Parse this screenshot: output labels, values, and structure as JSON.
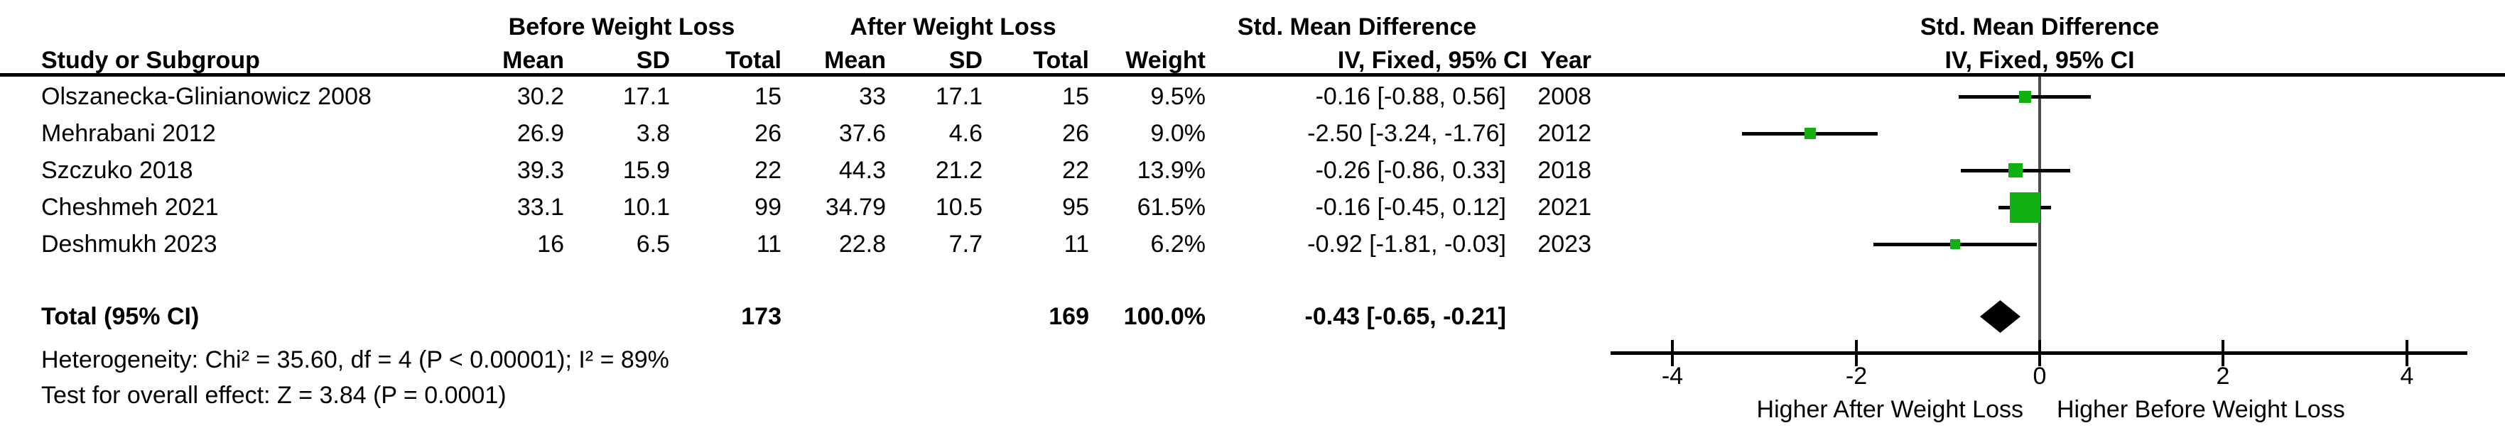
{
  "table": {
    "group_headers": {
      "before": "Before Weight Loss",
      "after": "After Weight Loss",
      "smd": "Std. Mean Difference"
    },
    "header": {
      "study": "Study or Subgroup",
      "mean_before": "Mean",
      "sd_before": "SD",
      "total_before": "Total",
      "mean_after": "Mean",
      "sd_after": "SD",
      "total_after": "Total",
      "weight": "Weight",
      "ci": "IV, Fixed, 95% CI",
      "year": "Year"
    },
    "rows": [
      {
        "name": "Olszanecka-Glinianowicz 2008",
        "mean_before": "30.2",
        "sd_before": "17.1",
        "total_before": "15",
        "mean_after": "33",
        "sd_after": "17.1",
        "total_after": "15",
        "weight": "9.5%",
        "ci_text": "-0.16 [-0.88, 0.56]",
        "year": "2008"
      },
      {
        "name": "Mehrabani 2012",
        "mean_before": "26.9",
        "sd_before": "3.8",
        "total_before": "26",
        "mean_after": "37.6",
        "sd_after": "4.6",
        "total_after": "26",
        "weight": "9.0%",
        "ci_text": "-2.50 [-3.24, -1.76]",
        "year": "2012"
      },
      {
        "name": "Szczuko 2018",
        "mean_before": "39.3",
        "sd_before": "15.9",
        "total_before": "22",
        "mean_after": "44.3",
        "sd_after": "21.2",
        "total_after": "22",
        "weight": "13.9%",
        "ci_text": "-0.26 [-0.86, 0.33]",
        "year": "2018"
      },
      {
        "name": "Cheshmeh 2021",
        "mean_before": "33.1",
        "sd_before": "10.1",
        "total_before": "99",
        "mean_after": "34.79",
        "sd_after": "10.5",
        "total_after": "95",
        "weight": "61.5%",
        "ci_text": "-0.16 [-0.45, 0.12]",
        "year": "2021"
      },
      {
        "name": "Deshmukh 2023",
        "mean_before": "16",
        "sd_before": "6.5",
        "total_before": "11",
        "mean_after": "22.8",
        "sd_after": "7.7",
        "total_after": "11",
        "weight": "6.2%",
        "ci_text": "-0.92 [-1.81, -0.03]",
        "year": "2023"
      }
    ],
    "total_row": {
      "label": "Total (95% CI)",
      "total_before": "173",
      "total_after": "169",
      "weight": "100.0%",
      "ci_text": "-0.43 [-0.65, -0.21]"
    }
  },
  "plot_header": {
    "line1": "Std. Mean Difference",
    "line2": "IV, Fixed, 95% CI"
  },
  "footer": {
    "heterogeneity": "Heterogeneity: Chi² = 35.60, df = 4 (P < 0.00001); I² = 89%",
    "overall_effect": "Test for overall effect: Z = 3.84 (P = 0.0001)"
  },
  "axis": {
    "tick_labels": [
      "-4",
      "-2",
      "0",
      "2",
      "4"
    ],
    "tick_values": [
      -4,
      -2,
      0,
      2,
      4
    ],
    "label_left": "Higher After Weight Loss",
    "label_right": "Higher Before Weight Loss"
  },
  "colors": {
    "marker_green": "#10b010",
    "diamond_black": "#000000",
    "zero_line_gray": "#4d4d4d"
  },
  "chart_data": {
    "type": "scatter",
    "subtype": "forest-plot-fixed-effect",
    "title": "Std. Mean Difference",
    "effect_measure": "IV, Fixed, 95% CI",
    "x_axis": {
      "range": [
        -4,
        4
      ],
      "ticks": [
        -4,
        -2,
        0,
        2,
        4
      ],
      "zero_reference_line": 0,
      "label_left_of_zero": "Higher After Weight Loss",
      "label_right_of_zero": "Higher Before Weight Loss"
    },
    "studies": [
      {
        "name": "Olszanecka-Glinianowicz 2008",
        "year": 2008,
        "estimate": -0.16,
        "ci_low": -0.88,
        "ci_high": 0.56,
        "weight_pct": 9.5,
        "before": {
          "mean": 30.2,
          "sd": 17.1,
          "total": 15
        },
        "after": {
          "mean": 33,
          "sd": 17.1,
          "total": 15
        }
      },
      {
        "name": "Mehrabani 2012",
        "year": 2012,
        "estimate": -2.5,
        "ci_low": -3.24,
        "ci_high": -1.76,
        "weight_pct": 9.0,
        "before": {
          "mean": 26.9,
          "sd": 3.8,
          "total": 26
        },
        "after": {
          "mean": 37.6,
          "sd": 4.6,
          "total": 26
        }
      },
      {
        "name": "Szczuko 2018",
        "year": 2018,
        "estimate": -0.26,
        "ci_low": -0.86,
        "ci_high": 0.33,
        "weight_pct": 13.9,
        "before": {
          "mean": 39.3,
          "sd": 15.9,
          "total": 22
        },
        "after": {
          "mean": 44.3,
          "sd": 21.2,
          "total": 22
        }
      },
      {
        "name": "Cheshmeh 2021",
        "year": 2021,
        "estimate": -0.16,
        "ci_low": -0.45,
        "ci_high": 0.12,
        "weight_pct": 61.5,
        "before": {
          "mean": 33.1,
          "sd": 10.1,
          "total": 99
        },
        "after": {
          "mean": 34.79,
          "sd": 10.5,
          "total": 95
        }
      },
      {
        "name": "Deshmukh 2023",
        "year": 2023,
        "estimate": -0.92,
        "ci_low": -1.81,
        "ci_high": -0.03,
        "weight_pct": 6.2,
        "before": {
          "mean": 16,
          "sd": 6.5,
          "total": 11
        },
        "after": {
          "mean": 22.8,
          "sd": 7.7,
          "total": 11
        }
      }
    ],
    "pooled": {
      "name": "Total (95% CI)",
      "estimate": -0.43,
      "ci_low": -0.65,
      "ci_high": -0.21,
      "weight_pct": 100.0,
      "total_before": 173,
      "total_after": 169
    },
    "heterogeneity": {
      "chi2": 35.6,
      "df": 4,
      "p": "< 0.00001",
      "i2_pct": 89
    },
    "overall_effect": {
      "z": 3.84,
      "p": "= 0.0001"
    }
  }
}
